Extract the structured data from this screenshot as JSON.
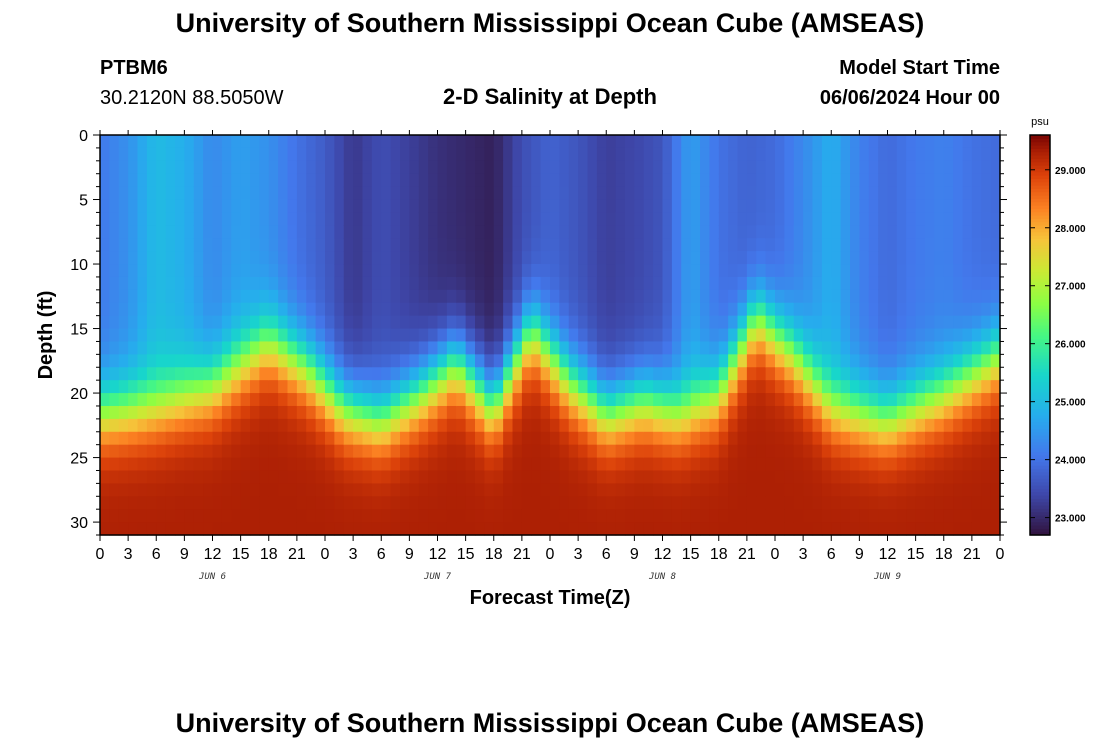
{
  "header": {
    "title": "University of Southern Mississippi Ocean Cube (AMSEAS)",
    "station_id": "PTBM6",
    "station_coords": "30.2120N  88.5050W",
    "plot_title": "2-D Salinity at Depth",
    "model_start_label": "Model Start Time",
    "model_start_value": "06/06/2024 Hour 00"
  },
  "footer": {
    "title": "University of Southern Mississippi Ocean Cube (AMSEAS)"
  },
  "chart_data": {
    "type": "heatmap",
    "title": "2-D Salinity at Depth",
    "xlabel": "Forecast Time(Z)",
    "ylabel": "Depth (ft)",
    "x_hours_range": [
      0,
      96
    ],
    "ylim": [
      0,
      31
    ],
    "x_tick_labels": [
      "0",
      "3",
      "6",
      "9",
      "12",
      "15",
      "18",
      "21",
      "0",
      "3",
      "6",
      "9",
      "12",
      "15",
      "18",
      "21",
      "0",
      "3",
      "6",
      "9",
      "12",
      "15",
      "18",
      "21",
      "0",
      "3",
      "6",
      "9",
      "12",
      "15",
      "18",
      "21",
      "0"
    ],
    "y_ticks": [
      0,
      5,
      10,
      15,
      20,
      25,
      30
    ],
    "day_labels": [
      {
        "label": "JUN 6",
        "hour": 12
      },
      {
        "label": "JUN 7",
        "hour": 36
      },
      {
        "label": "JUN 8",
        "hour": 60
      },
      {
        "label": "JUN 9",
        "hour": 84
      }
    ],
    "colorbar": {
      "unit": "psu",
      "min": 22.7,
      "max": 29.6,
      "tick_values": [
        23.0,
        24.0,
        25.0,
        26.0,
        27.0,
        28.0,
        29.0
      ],
      "tick_labels": [
        "23.000",
        "24.000",
        "25.000",
        "26.000",
        "27.000",
        "28.000",
        "29.000"
      ]
    },
    "halocline_depth_ft": [
      {
        "hour": 0,
        "depth": 21.5
      },
      {
        "hour": 6,
        "depth": 21.0
      },
      {
        "hour": 12,
        "depth": 19.5
      },
      {
        "hour": 18,
        "depth": 16.0
      },
      {
        "hour": 22,
        "depth": 18.0
      },
      {
        "hour": 26,
        "depth": 21.0
      },
      {
        "hour": 30,
        "depth": 22.0
      },
      {
        "hour": 34,
        "depth": 20.0
      },
      {
        "hour": 38,
        "depth": 17.5
      },
      {
        "hour": 42,
        "depth": 21.0
      },
      {
        "hour": 46,
        "depth": 15.0
      },
      {
        "hour": 50,
        "depth": 19.0
      },
      {
        "hour": 54,
        "depth": 21.5
      },
      {
        "hour": 58,
        "depth": 20.5
      },
      {
        "hour": 62,
        "depth": 21.5
      },
      {
        "hour": 66,
        "depth": 20.0
      },
      {
        "hour": 70,
        "depth": 14.0
      },
      {
        "hour": 74,
        "depth": 17.0
      },
      {
        "hour": 78,
        "depth": 21.0
      },
      {
        "hour": 84,
        "depth": 22.0
      },
      {
        "hour": 90,
        "depth": 20.0
      },
      {
        "hour": 96,
        "depth": 17.0
      }
    ],
    "surface_salinity_psu": [
      {
        "hour": 0,
        "value": 24.1
      },
      {
        "hour": 3,
        "value": 24.4
      },
      {
        "hour": 6,
        "value": 25.0
      },
      {
        "hour": 9,
        "value": 24.8
      },
      {
        "hour": 12,
        "value": 24.3
      },
      {
        "hour": 15,
        "value": 24.6
      },
      {
        "hour": 18,
        "value": 24.4
      },
      {
        "hour": 21,
        "value": 24.0
      },
      {
        "hour": 24,
        "value": 23.7
      },
      {
        "hour": 27,
        "value": 23.2
      },
      {
        "hour": 30,
        "value": 23.5
      },
      {
        "hour": 33,
        "value": 23.3
      },
      {
        "hour": 36,
        "value": 23.1
      },
      {
        "hour": 39,
        "value": 23.0
      },
      {
        "hour": 42,
        "value": 22.9
      },
      {
        "hour": 45,
        "value": 23.5
      },
      {
        "hour": 48,
        "value": 23.8
      },
      {
        "hour": 51,
        "value": 23.6
      },
      {
        "hour": 54,
        "value": 23.3
      },
      {
        "hour": 57,
        "value": 23.4
      },
      {
        "hour": 60,
        "value": 23.6
      },
      {
        "hour": 63,
        "value": 24.6
      },
      {
        "hour": 66,
        "value": 24.0
      },
      {
        "hour": 69,
        "value": 23.8
      },
      {
        "hour": 72,
        "value": 23.9
      },
      {
        "hour": 75,
        "value": 24.3
      },
      {
        "hour": 78,
        "value": 24.8
      },
      {
        "hour": 81,
        "value": 24.2
      },
      {
        "hour": 84,
        "value": 23.9
      },
      {
        "hour": 87,
        "value": 24.1
      },
      {
        "hour": 90,
        "value": 24.2
      },
      {
        "hour": 93,
        "value": 24.0
      },
      {
        "hour": 96,
        "value": 23.9
      }
    ],
    "bottom_salinity_psu": 29.3
  }
}
